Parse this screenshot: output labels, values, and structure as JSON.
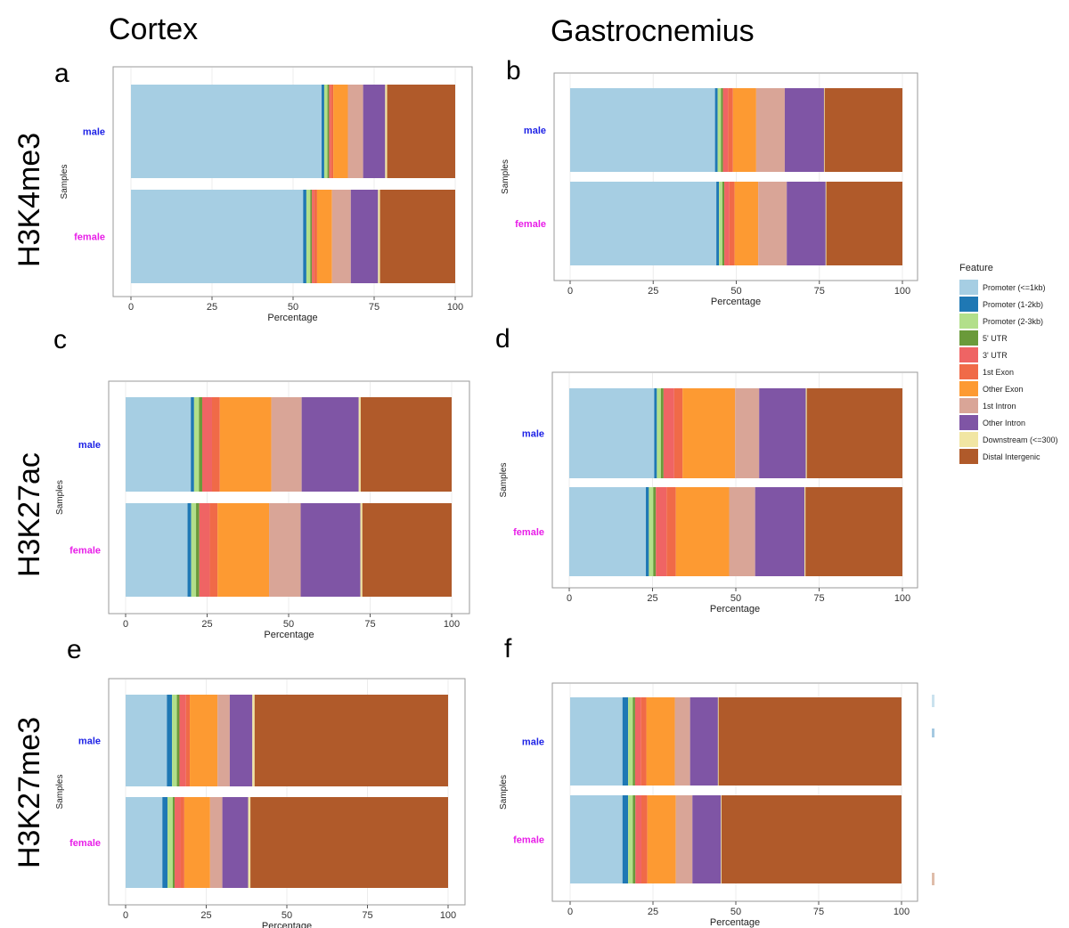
{
  "column_titles": [
    "Cortex",
    "Gastrocnemius"
  ],
  "row_titles": [
    "H3K4me3",
    "H3K27ac",
    "H3K27me3"
  ],
  "axis": {
    "xlabel": "Percentage",
    "ylabel": "Samples",
    "ticks": [
      0,
      25,
      50,
      75,
      100
    ]
  },
  "legend": {
    "title": "Feature",
    "items": [
      {
        "label": "Promoter (<=1kb)",
        "color": "#a6cee3"
      },
      {
        "label": "Promoter (1-2kb)",
        "color": "#1f78b4"
      },
      {
        "label": "Promoter (2-3kb)",
        "color": "#b2df8a"
      },
      {
        "label": "5' UTR",
        "color": "#6a9a3a"
      },
      {
        "label": "3' UTR",
        "color": "#ef6464"
      },
      {
        "label": "1st Exon",
        "color": "#f06a48"
      },
      {
        "label": "Other Exon",
        "color": "#fd9a32"
      },
      {
        "label": "1st Intron",
        "color": "#d9a597"
      },
      {
        "label": "Other Intron",
        "color": "#7f55a5"
      },
      {
        "label": "Downstream (<=300)",
        "color": "#f1e6a3"
      },
      {
        "label": "Distal Intergenic",
        "color": "#b05a2a"
      }
    ]
  },
  "sample_colors": {
    "male": "#1e22e6",
    "female": "#e81ee8"
  },
  "chart_data": [
    {
      "type": "bar",
      "orientation": "horizontal",
      "stacked": true,
      "panel_label": "a",
      "column": "Cortex",
      "row": "H3K4me3",
      "xlabel": "Percentage",
      "ylabel": "Samples",
      "xlim": [
        0,
        100
      ],
      "categories": [
        "male",
        "female"
      ],
      "series": [
        {
          "name": "Promoter (<=1kb)",
          "values": [
            58.8,
            53.1
          ]
        },
        {
          "name": "Promoter (1-2kb)",
          "values": [
            0.8,
            1.0
          ]
        },
        {
          "name": "Promoter (2-3kb)",
          "values": [
            1.0,
            1.2
          ]
        },
        {
          "name": "5' UTR",
          "values": [
            0.5,
            0.5
          ]
        },
        {
          "name": "3' UTR",
          "values": [
            0.5,
            0.6
          ]
        },
        {
          "name": "1st Exon",
          "values": [
            0.8,
            1.0
          ]
        },
        {
          "name": "Other Exon",
          "values": [
            4.5,
            4.6
          ]
        },
        {
          "name": "1st Intron",
          "values": [
            4.7,
            5.8
          ]
        },
        {
          "name": "Other Intron",
          "values": [
            6.8,
            8.4
          ]
        },
        {
          "name": "Downstream (<=300)",
          "values": [
            0.6,
            0.6
          ]
        },
        {
          "name": "Distal Intergenic",
          "values": [
            21.0,
            23.2
          ]
        }
      ]
    },
    {
      "type": "bar",
      "orientation": "horizontal",
      "stacked": true,
      "panel_label": "b",
      "column": "Gastrocnemius",
      "row": "H3K4me3",
      "xlabel": "Percentage",
      "ylabel": "Samples",
      "xlim": [
        0,
        100
      ],
      "categories": [
        "male",
        "female"
      ],
      "series": [
        {
          "name": "Promoter (<=1kb)",
          "values": [
            43.6,
            44.0
          ]
        },
        {
          "name": "Promoter (1-2kb)",
          "values": [
            0.8,
            0.8
          ]
        },
        {
          "name": "Promoter (2-3kb)",
          "values": [
            1.0,
            1.0
          ]
        },
        {
          "name": "5' UTR",
          "values": [
            0.6,
            0.6
          ]
        },
        {
          "name": "3' UTR",
          "values": [
            1.5,
            1.5
          ]
        },
        {
          "name": "1st Exon",
          "values": [
            1.5,
            1.6
          ]
        },
        {
          "name": "Other Exon",
          "values": [
            7.0,
            7.1
          ]
        },
        {
          "name": "1st Intron",
          "values": [
            8.6,
            8.6
          ]
        },
        {
          "name": "Other Intron",
          "values": [
            11.8,
            11.7
          ]
        },
        {
          "name": "Downstream (<=300)",
          "values": [
            0.2,
            0.2
          ]
        },
        {
          "name": "Distal Intergenic",
          "values": [
            23.4,
            22.9
          ]
        }
      ]
    },
    {
      "type": "bar",
      "orientation": "horizontal",
      "stacked": true,
      "panel_label": "c",
      "column": "Cortex",
      "row": "H3K27ac",
      "xlabel": "Percentage",
      "ylabel": "Samples",
      "xlim": [
        0,
        100
      ],
      "categories": [
        "male",
        "female"
      ],
      "series": [
        {
          "name": "Promoter (<=1kb)",
          "values": [
            20.0,
            19.0
          ]
        },
        {
          "name": "Promoter (1-2kb)",
          "values": [
            1.0,
            1.1
          ]
        },
        {
          "name": "Promoter (2-3kb)",
          "values": [
            1.5,
            1.5
          ]
        },
        {
          "name": "5' UTR",
          "values": [
            1.0,
            1.0
          ]
        },
        {
          "name": "3' UTR",
          "values": [
            3.0,
            3.2
          ]
        },
        {
          "name": "1st Exon",
          "values": [
            2.4,
            2.4
          ]
        },
        {
          "name": "Other Exon",
          "values": [
            15.8,
            15.8
          ]
        },
        {
          "name": "1st Intron",
          "values": [
            9.3,
            9.7
          ]
        },
        {
          "name": "Other Intron",
          "values": [
            17.5,
            18.3
          ]
        },
        {
          "name": "Downstream (<=300)",
          "values": [
            0.6,
            0.6
          ]
        },
        {
          "name": "Distal Intergenic",
          "values": [
            27.9,
            27.4
          ]
        }
      ]
    },
    {
      "type": "bar",
      "orientation": "horizontal",
      "stacked": true,
      "panel_label": "d",
      "column": "Gastrocnemius",
      "row": "H3K27ac",
      "xlabel": "Percentage",
      "ylabel": "Samples",
      "xlim": [
        0,
        100
      ],
      "categories": [
        "male",
        "female"
      ],
      "series": [
        {
          "name": "Promoter (<=1kb)",
          "values": [
            25.5,
            23.0
          ]
        },
        {
          "name": "Promoter (1-2kb)",
          "values": [
            0.8,
            0.9
          ]
        },
        {
          "name": "Promoter (2-3kb)",
          "values": [
            1.2,
            1.3
          ]
        },
        {
          "name": "5' UTR",
          "values": [
            0.8,
            0.8
          ]
        },
        {
          "name": "3' UTR",
          "values": [
            3.2,
            3.2
          ]
        },
        {
          "name": "1st Exon",
          "values": [
            2.5,
            2.8
          ]
        },
        {
          "name": "Other Exon",
          "values": [
            15.8,
            16.0
          ]
        },
        {
          "name": "1st Intron",
          "values": [
            7.2,
            7.8
          ]
        },
        {
          "name": "Other Intron",
          "values": [
            14.0,
            14.8
          ]
        },
        {
          "name": "Downstream (<=300)",
          "values": [
            0.3,
            0.3
          ]
        },
        {
          "name": "Distal Intergenic",
          "values": [
            28.7,
            29.1
          ]
        }
      ]
    },
    {
      "type": "bar",
      "orientation": "horizontal",
      "stacked": true,
      "panel_label": "e",
      "column": "Cortex",
      "row": "H3K27me3",
      "xlabel": "Percentage",
      "ylabel": "Samples",
      "xlim": [
        0,
        100
      ],
      "categories": [
        "male",
        "female"
      ],
      "series": [
        {
          "name": "Promoter (<=1kb)",
          "values": [
            12.8,
            11.4
          ]
        },
        {
          "name": "Promoter (1-2kb)",
          "values": [
            1.6,
            1.6
          ]
        },
        {
          "name": "Promoter (2-3kb)",
          "values": [
            1.5,
            1.6
          ]
        },
        {
          "name": "5' UTR",
          "values": [
            0.8,
            0.6
          ]
        },
        {
          "name": "3' UTR",
          "values": [
            2.0,
            1.8
          ]
        },
        {
          "name": "1st Exon",
          "values": [
            1.2,
            1.2
          ]
        },
        {
          "name": "Other Exon",
          "values": [
            8.6,
            8.0
          ]
        },
        {
          "name": "1st Intron",
          "values": [
            3.8,
            3.8
          ]
        },
        {
          "name": "Other Intron",
          "values": [
            7.0,
            8.0
          ]
        },
        {
          "name": "Downstream (<=300)",
          "values": [
            0.7,
            0.7
          ]
        },
        {
          "name": "Distal Intergenic",
          "values": [
            60.0,
            61.3
          ]
        }
      ]
    },
    {
      "type": "bar",
      "orientation": "horizontal",
      "stacked": true,
      "panel_label": "f",
      "column": "Gastrocnemius",
      "row": "H3K27me3",
      "xlabel": "Percentage",
      "ylabel": "Samples",
      "xlim": [
        0,
        100
      ],
      "categories": [
        "male",
        "female"
      ],
      "series": [
        {
          "name": "Promoter (<=1kb)",
          "values": [
            15.8,
            15.8
          ]
        },
        {
          "name": "Promoter (1-2kb)",
          "values": [
            1.7,
            1.7
          ]
        },
        {
          "name": "Promoter (2-3kb)",
          "values": [
            1.4,
            1.4
          ]
        },
        {
          "name": "5' UTR",
          "values": [
            0.7,
            0.8
          ]
        },
        {
          "name": "3' UTR",
          "values": [
            1.7,
            1.8
          ]
        },
        {
          "name": "1st Exon",
          "values": [
            1.7,
            1.8
          ]
        },
        {
          "name": "Other Exon",
          "values": [
            8.6,
            8.6
          ]
        },
        {
          "name": "1st Intron",
          "values": [
            4.6,
            5.0
          ]
        },
        {
          "name": "Other Intron",
          "values": [
            8.4,
            8.6
          ]
        },
        {
          "name": "Downstream (<=300)",
          "values": [
            0.2,
            0.2
          ]
        },
        {
          "name": "Distal Intergenic",
          "values": [
            55.2,
            54.3
          ]
        }
      ]
    }
  ]
}
